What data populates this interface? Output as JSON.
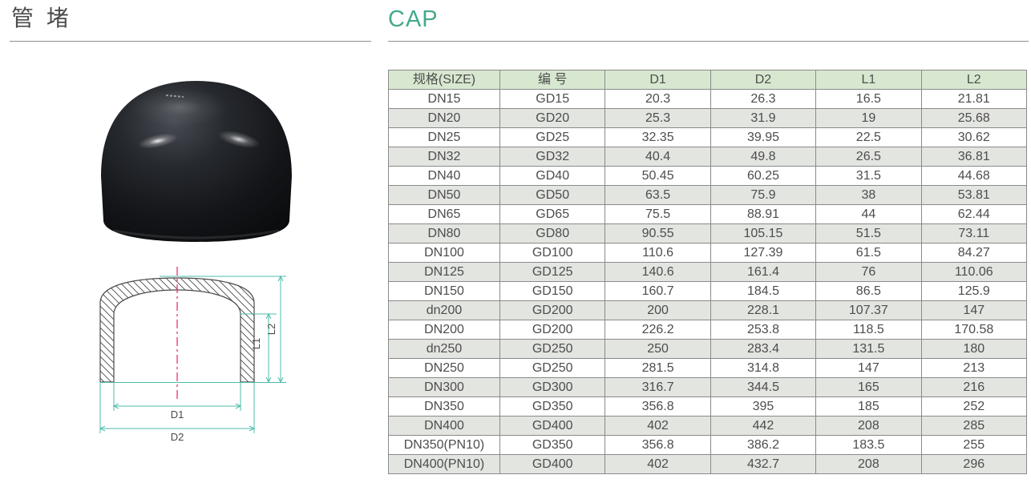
{
  "titles": {
    "chinese": "管 堵",
    "english": "CAP"
  },
  "table": {
    "headers": [
      "规格(SIZE)",
      "编 号",
      "D1",
      "D2",
      "L1",
      "L2"
    ],
    "rows": [
      [
        "DN15",
        "GD15",
        "20.3",
        "26.3",
        "16.5",
        "21.81"
      ],
      [
        "DN20",
        "GD20",
        "25.3",
        "31.9",
        "19",
        "25.68"
      ],
      [
        "DN25",
        "GD25",
        "32.35",
        "39.95",
        "22.5",
        "30.62"
      ],
      [
        "DN32",
        "GD32",
        "40.4",
        "49.8",
        "26.5",
        "36.81"
      ],
      [
        "DN40",
        "GD40",
        "50.45",
        "60.25",
        "31.5",
        "44.68"
      ],
      [
        "DN50",
        "GD50",
        "63.5",
        "75.9",
        "38",
        "53.81"
      ],
      [
        "DN65",
        "GD65",
        "75.5",
        "88.91",
        "44",
        "62.44"
      ],
      [
        "DN80",
        "GD80",
        "90.55",
        "105.15",
        "51.5",
        "73.11"
      ],
      [
        "DN100",
        "GD100",
        "110.6",
        "127.39",
        "61.5",
        "84.27"
      ],
      [
        "DN125",
        "GD125",
        "140.6",
        "161.4",
        "76",
        "110.06"
      ],
      [
        "DN150",
        "GD150",
        "160.7",
        "184.5",
        "86.5",
        "125.9"
      ],
      [
        "dn200",
        "GD200",
        "200",
        "228.1",
        "107.37",
        "147"
      ],
      [
        "DN200",
        "GD200",
        "226.2",
        "253.8",
        "118.5",
        "170.58"
      ],
      [
        "dn250",
        "GD250",
        "250",
        "283.4",
        "131.5",
        "180"
      ],
      [
        "DN250",
        "GD250",
        "281.5",
        "314.8",
        "147",
        "213"
      ],
      [
        "DN300",
        "GD300",
        "316.7",
        "344.5",
        "165",
        "216"
      ],
      [
        "DN350",
        "GD350",
        "356.8",
        "395",
        "185",
        "252"
      ],
      [
        "DN400",
        "GD400",
        "402",
        "442",
        "208",
        "285"
      ],
      [
        "DN350(PN10)",
        "GD350",
        "356.8",
        "386.2",
        "183.5",
        "255"
      ],
      [
        "DN400(PN10)",
        "GD400",
        "402",
        "432.7",
        "208",
        "296"
      ]
    ]
  },
  "drawing": {
    "labels": {
      "d1": "D1",
      "d2": "D2",
      "l1": "L1",
      "l2": "L2"
    }
  },
  "colors": {
    "accent": "#45a98e",
    "table_header_bg": "#d8e8d0",
    "row_stripe_bg": "#e3e5e1",
    "table_border": "#8a8a8a",
    "text": "#4d4d4d",
    "dimension_line": "#4cbcaa",
    "centerline": "#ee2e7c",
    "rule": "#8f8f8f",
    "title_text": "#4b4b4b"
  }
}
